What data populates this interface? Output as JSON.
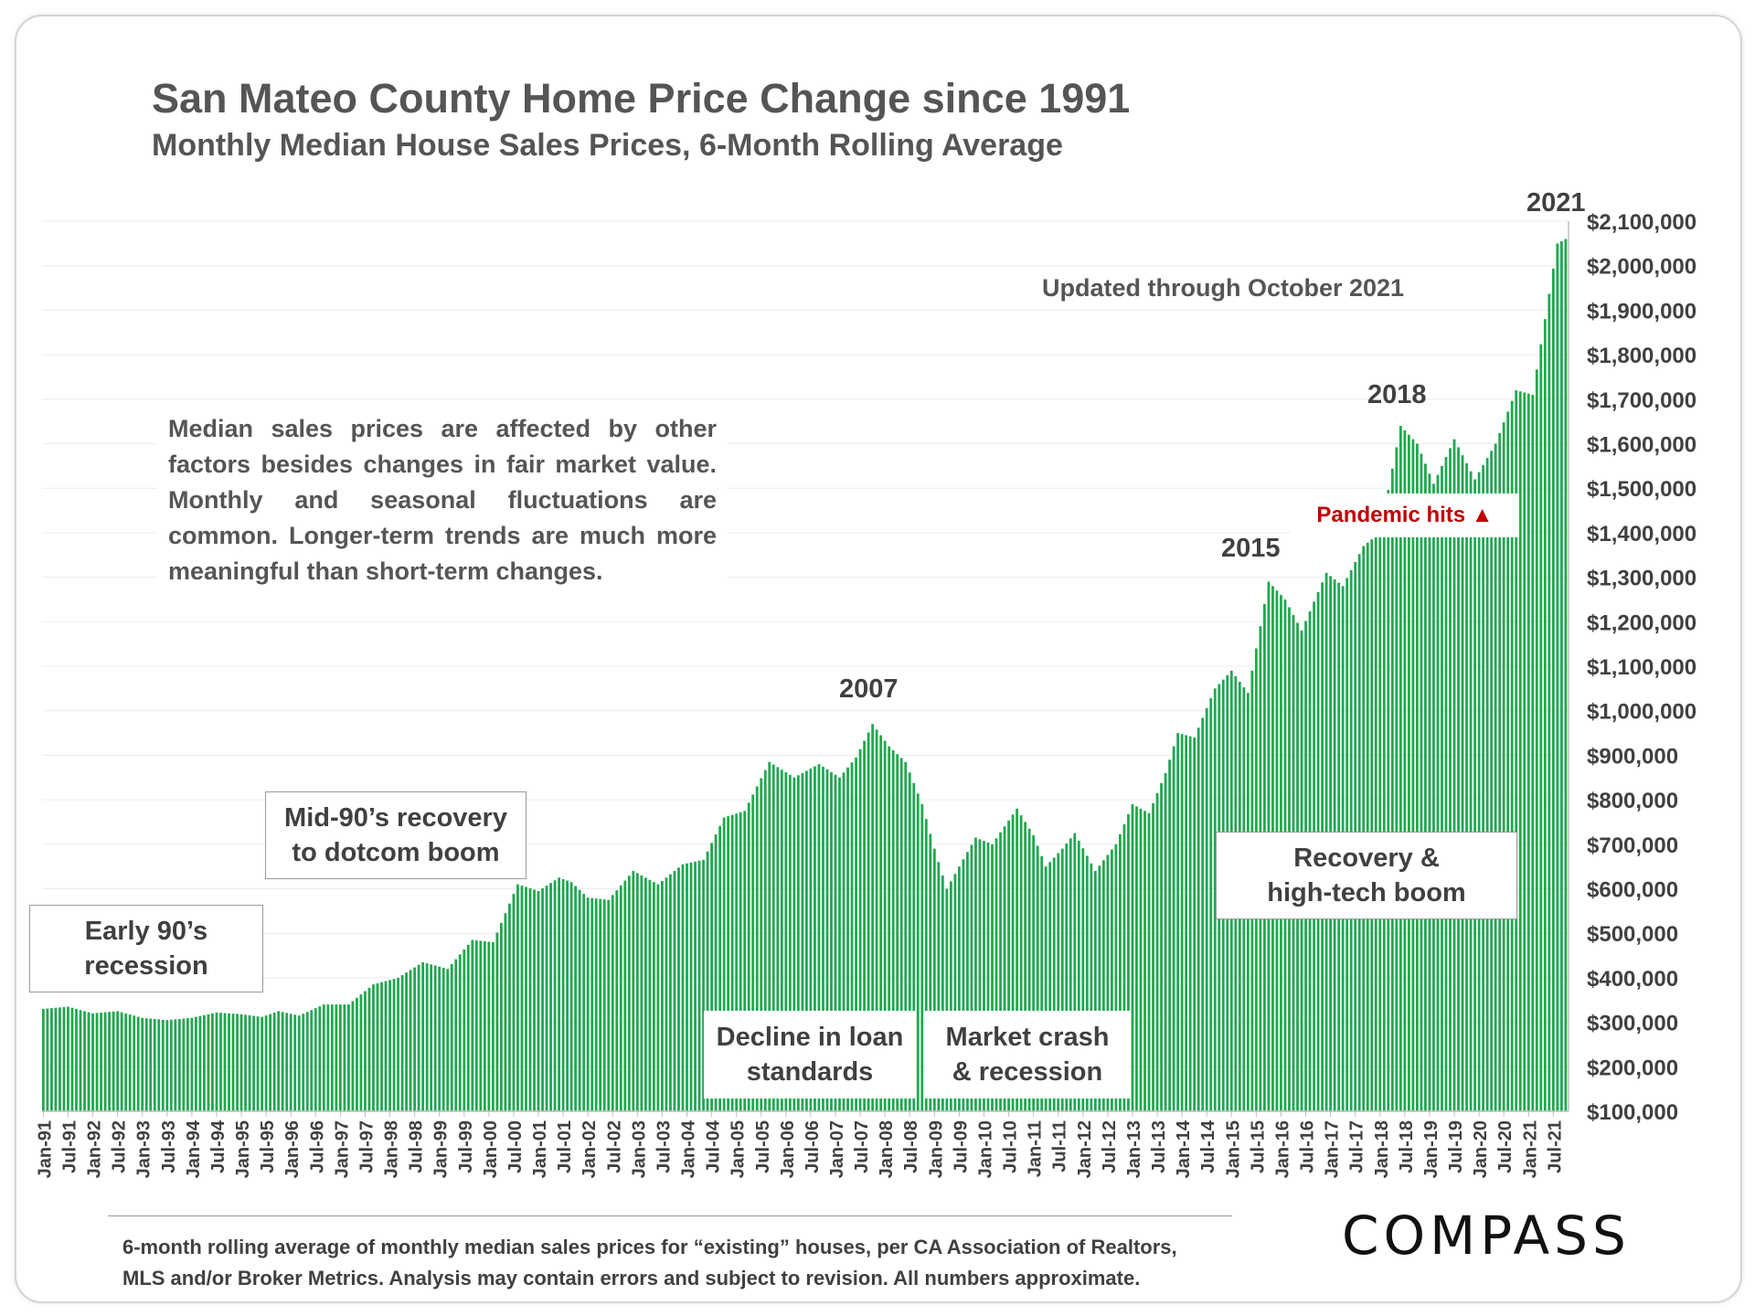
{
  "header": {
    "title": "San Mateo County Home Price Change since 1991",
    "subtitle": "Monthly Median House Sales Prices, 6-Month Rolling Average"
  },
  "updated_note": "Updated through October 2021",
  "description": "Median sales prices are affected by other factors besides changes in fair market value. Monthly and seasonal fluctuations are common. Longer-term trends are much more meaningful than short-term changes.",
  "annotations": {
    "early90s": [
      "Early 90’s",
      "recession"
    ],
    "mid90s": [
      "Mid-90’s recovery",
      "to dotcom boom"
    ],
    "decline": [
      "Decline in loan",
      "standards"
    ],
    "crash": [
      "Market crash",
      "& recession"
    ],
    "recovery": [
      "Recovery &",
      "high-tech boom"
    ],
    "pandemic": "Pandemic hits ▲"
  },
  "year_labels": {
    "y2007": "2007",
    "y2015": "2015",
    "y2018": "2018",
    "y2021": "2021"
  },
  "footnote": [
    "6-month rolling average of monthly median sales prices for “existing” houses, per CA Association of Realtors,",
    "MLS and/or Broker Metrics.  Analysis may contain errors and subject to revision. All numbers approximate."
  ],
  "logo": "COMPASS",
  "colors": {
    "bar": "#1fa84f",
    "text": "#555555",
    "pandemic": "#c00000"
  },
  "chart_data": {
    "type": "bar",
    "title": "San Mateo County Home Price Change since 1991",
    "subtitle": "Monthly Median House Sales Prices, 6-Month Rolling Average",
    "xlabel": "",
    "ylabel": "",
    "ylim": [
      100000,
      2100000
    ],
    "grid": true,
    "y_ticks": [
      "$100,000",
      "$200,000",
      "$300,000",
      "$400,000",
      "$500,000",
      "$600,000",
      "$700,000",
      "$800,000",
      "$900,000",
      "$1,000,000",
      "$1,100,000",
      "$1,200,000",
      "$1,300,000",
      "$1,400,000",
      "$1,500,000",
      "$1,600,000",
      "$1,700,000",
      "$1,800,000",
      "$1,900,000",
      "$2,000,000",
      "$2,100,000"
    ],
    "x_tick_labels": [
      "Jan-91",
      "Jul-91",
      "Jan-92",
      "Jul-92",
      "Jan-93",
      "Jul-93",
      "Jan-94",
      "Jul-94",
      "Jan-95",
      "Jul-95",
      "Jan-96",
      "Jul-96",
      "Jan-97",
      "Jul-97",
      "Jan-98",
      "Jul-98",
      "Jan-99",
      "Jul-99",
      "Jan-00",
      "Jul-00",
      "Jan-01",
      "Jul-01",
      "Jan-02",
      "Jul-02",
      "Jan-03",
      "Jul-03",
      "Jan-04",
      "Jul-04",
      "Jan-05",
      "Jul-05",
      "Jan-06",
      "Jul-06",
      "Jan-07",
      "Jul-07",
      "Jan-08",
      "Jul-08",
      "Jan-09",
      "Jul-09",
      "Jan-10",
      "Jul-10",
      "Jan-11",
      "Jul-11",
      "Jan-12",
      "Jul-12",
      "Jan-13",
      "Jul-13",
      "Jan-14",
      "Jul-14",
      "Jan-15",
      "Jul-15",
      "Jan-16",
      "Jul-16",
      "Jan-17",
      "Jul-17",
      "Jan-18",
      "Jul-18",
      "Jan-19",
      "Jul-19",
      "Jan-20",
      "Jul-20",
      "Jan-21",
      "Jul-21"
    ],
    "first_month": "Jan-91",
    "last_month": "Oct-21",
    "anchors": [
      [
        "1991-01",
        330000
      ],
      [
        "1991-07",
        335000
      ],
      [
        "1992-01",
        320000
      ],
      [
        "1992-07",
        325000
      ],
      [
        "1993-01",
        310000
      ],
      [
        "1993-07",
        305000
      ],
      [
        "1994-01",
        310000
      ],
      [
        "1994-07",
        322000
      ],
      [
        "1995-01",
        318000
      ],
      [
        "1995-06",
        312000
      ],
      [
        "1995-10",
        325000
      ],
      [
        "1996-03",
        315000
      ],
      [
        "1996-09",
        340000
      ],
      [
        "1997-03",
        340000
      ],
      [
        "1997-09",
        385000
      ],
      [
        "1998-03",
        400000
      ],
      [
        "1998-09",
        435000
      ],
      [
        "1999-03",
        420000
      ],
      [
        "1999-09",
        485000
      ],
      [
        "2000-02",
        480000
      ],
      [
        "2000-08",
        610000
      ],
      [
        "2001-01",
        595000
      ],
      [
        "2001-06",
        625000
      ],
      [
        "2001-09",
        615000
      ],
      [
        "2002-01",
        580000
      ],
      [
        "2002-06",
        575000
      ],
      [
        "2002-12",
        640000
      ],
      [
        "2003-06",
        610000
      ],
      [
        "2003-12",
        655000
      ],
      [
        "2004-05",
        665000
      ],
      [
        "2004-10",
        760000
      ],
      [
        "2005-03",
        775000
      ],
      [
        "2005-09",
        885000
      ],
      [
        "2006-03",
        850000
      ],
      [
        "2006-09",
        880000
      ],
      [
        "2007-02",
        850000
      ],
      [
        "2007-06",
        895000
      ],
      [
        "2007-10",
        970000
      ],
      [
        "2008-02",
        920000
      ],
      [
        "2008-06",
        885000
      ],
      [
        "2008-10",
        790000
      ],
      [
        "2009-01",
        690000
      ],
      [
        "2009-04",
        600000
      ],
      [
        "2009-07",
        650000
      ],
      [
        "2009-11",
        715000
      ],
      [
        "2010-03",
        700000
      ],
      [
        "2010-09",
        780000
      ],
      [
        "2011-01",
        720000
      ],
      [
        "2011-04",
        650000
      ],
      [
        "2011-08",
        690000
      ],
      [
        "2011-11",
        725000
      ],
      [
        "2012-04",
        640000
      ],
      [
        "2012-09",
        700000
      ],
      [
        "2013-01",
        790000
      ],
      [
        "2013-05",
        770000
      ],
      [
        "2013-09",
        860000
      ],
      [
        "2013-12",
        950000
      ],
      [
        "2014-04",
        940000
      ],
      [
        "2014-09",
        1050000
      ],
      [
        "2015-01",
        1090000
      ],
      [
        "2015-05",
        1040000
      ],
      [
        "2015-10",
        1290000
      ],
      [
        "2016-02",
        1250000
      ],
      [
        "2016-06",
        1180000
      ],
      [
        "2016-12",
        1310000
      ],
      [
        "2017-04",
        1280000
      ],
      [
        "2017-09",
        1370000
      ],
      [
        "2018-01",
        1400000
      ],
      [
        "2018-06",
        1640000
      ],
      [
        "2018-10",
        1600000
      ],
      [
        "2019-02",
        1510000
      ],
      [
        "2019-07",
        1610000
      ],
      [
        "2019-12",
        1520000
      ],
      [
        "2020-05",
        1600000
      ],
      [
        "2020-10",
        1720000
      ],
      [
        "2021-02",
        1710000
      ],
      [
        "2021-05",
        1880000
      ],
      [
        "2021-08",
        2050000
      ],
      [
        "2021-10",
        2060000
      ]
    ]
  }
}
